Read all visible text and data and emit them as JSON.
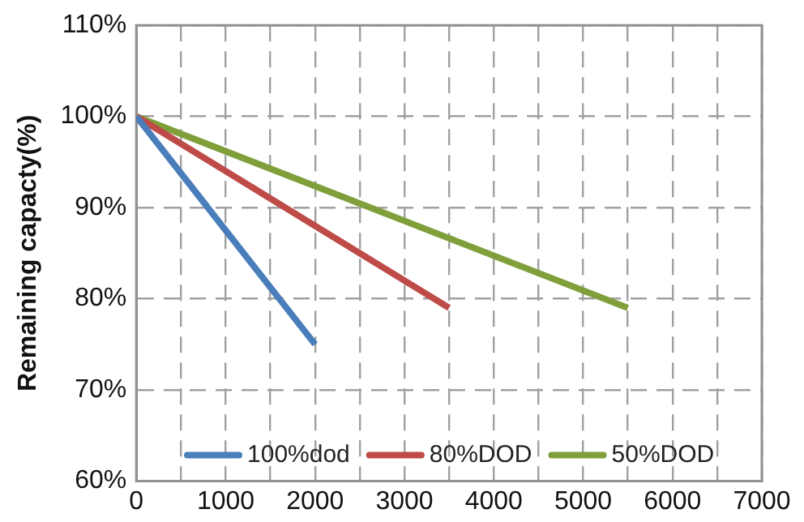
{
  "chart_data": {
    "type": "line",
    "ylabel": "Remaining capacty(%)",
    "series": [
      {
        "name": "100%dod",
        "color": "#4a7ebb",
        "x": [
          0,
          2000
        ],
        "values": [
          100,
          75
        ]
      },
      {
        "name": "80%DOD",
        "color": "#be4b48",
        "x": [
          0,
          3500
        ],
        "values": [
          100,
          79
        ]
      },
      {
        "name": "50%DOD",
        "color": "#7f9f3a",
        "x": [
          0,
          5500
        ],
        "values": [
          100,
          79
        ]
      }
    ],
    "xlim": [
      0,
      7000
    ],
    "xticks": [
      0,
      {
        "value": 500,
        "label": null
      },
      1000,
      {
        "value": 1500,
        "label": null
      },
      2000,
      {
        "value": 2500,
        "label": null
      },
      3000,
      {
        "value": 3500,
        "label": null
      },
      4000,
      {
        "value": 4500,
        "label": null
      },
      5000,
      {
        "value": 5500,
        "label": null
      },
      6000,
      {
        "value": 6500,
        "label": null
      },
      7000
    ],
    "ylim": [
      60,
      110
    ],
    "yticks": [
      {
        "value": 60,
        "label": "60%"
      },
      {
        "value": 70,
        "label": "70%"
      },
      {
        "value": 80,
        "label": "80%"
      },
      {
        "value": 90,
        "label": "90%"
      },
      {
        "value": 100,
        "label": "100%"
      },
      {
        "value": 110,
        "label": "110%"
      }
    ],
    "grid": true,
    "legend": "bottom",
    "marker": "none",
    "line_style": "solid"
  }
}
